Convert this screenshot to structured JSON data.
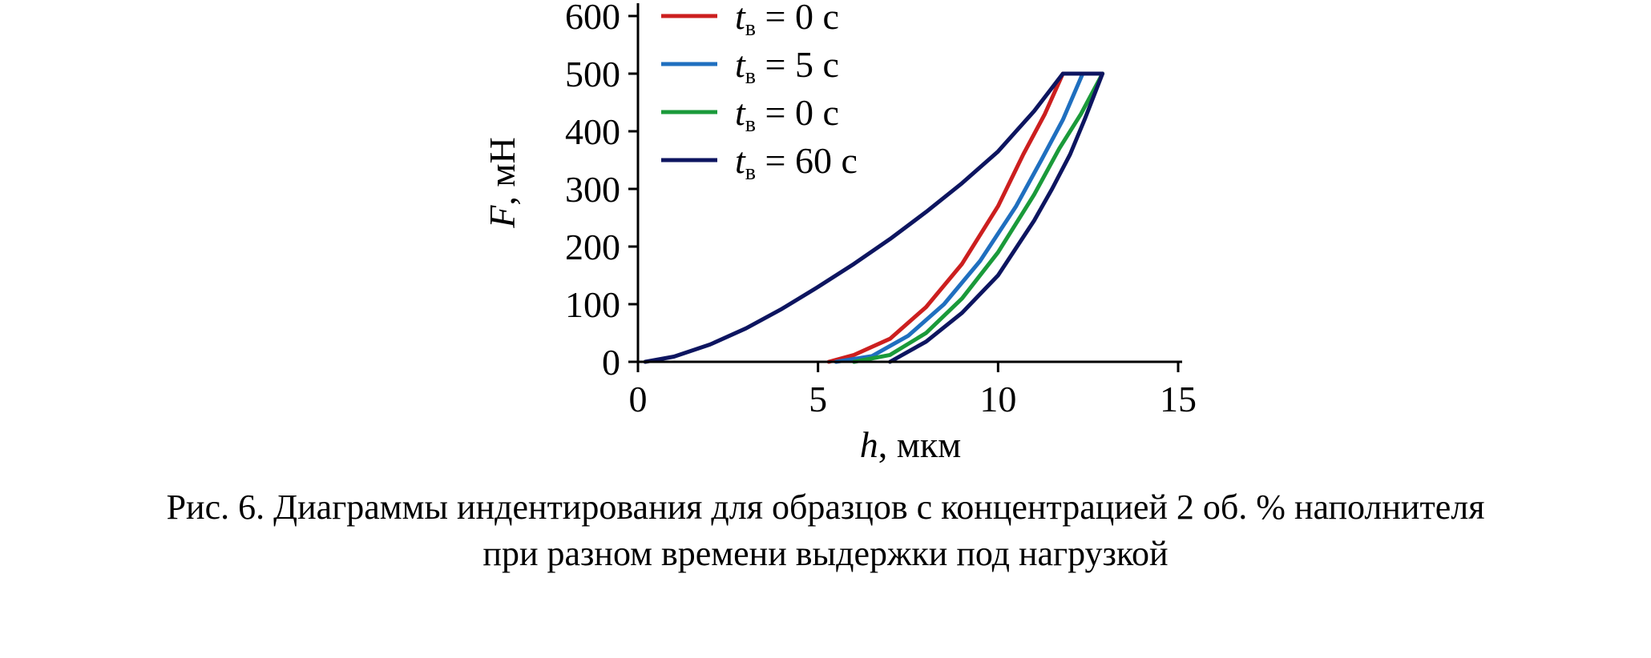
{
  "chart_data": {
    "type": "line",
    "xlabel": {
      "var": "h",
      "unit": ", мкм"
    },
    "ylabel": {
      "var": "F",
      "unit": ", мН"
    },
    "xlim": [
      0,
      15
    ],
    "ylim": [
      0,
      600
    ],
    "xticks": [
      "0",
      "5",
      "10",
      "15"
    ],
    "yticks": [
      "0",
      "100",
      "200",
      "300",
      "400",
      "500",
      "600"
    ],
    "grid": false,
    "legend_position": "top-left",
    "legend": [
      {
        "var": "t",
        "sub": "в",
        "text": " = 0 с"
      },
      {
        "var": "t",
        "sub": "в",
        "text": " = 5 с"
      },
      {
        "var": "t",
        "sub": "в",
        "text": " = 0 с"
      },
      {
        "var": "t",
        "sub": "в",
        "text": " = 60 с"
      }
    ],
    "series": [
      {
        "color": "#cc1f1f",
        "x": [
          5.3,
          6.0,
          7.0,
          8.0,
          9.0,
          10.0,
          10.7,
          11.3,
          11.8
        ],
        "y": [
          0,
          12,
          40,
          95,
          170,
          270,
          360,
          430,
          500
        ]
      },
      {
        "color": "#1f6fbf",
        "x": [
          5.5,
          6.5,
          7.5,
          8.5,
          9.5,
          10.5,
          11.2,
          11.8,
          12.35
        ],
        "y": [
          0,
          10,
          45,
          100,
          175,
          270,
          350,
          420,
          500
        ]
      },
      {
        "color": "#1a9a3a",
        "x": [
          6.0,
          7.0,
          8.0,
          9.0,
          10.0,
          11.0,
          11.7,
          12.3,
          12.9
        ],
        "y": [
          0,
          12,
          50,
          110,
          190,
          290,
          370,
          430,
          500
        ]
      },
      {
        "color": "#0d1560",
        "x": [
          0.2,
          1.0,
          2.0,
          3.0,
          4.0,
          5.0,
          6.0,
          7.0,
          8.0,
          9.0,
          10.0,
          11.0,
          11.8,
          12.9,
          12.9,
          12.4,
          12.0,
          11.5,
          11.0,
          10.0,
          9.0,
          8.0,
          7.0
        ],
        "y": [
          0,
          9,
          30,
          58,
          92,
          130,
          170,
          213,
          260,
          310,
          365,
          435,
          500,
          500,
          500,
          420,
          360,
          300,
          245,
          150,
          85,
          35,
          0
        ]
      }
    ]
  },
  "caption": {
    "line1": "Рис. 6. Диаграммы индентирования для образцов с концентрацией 2 об. % наполнителя",
    "line2": "при разном времени выдержки под нагрузкой"
  }
}
